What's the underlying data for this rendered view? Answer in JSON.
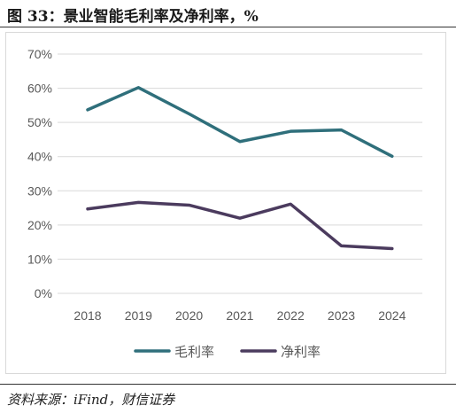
{
  "header": {
    "title": "图 33：景业智能毛利率及净利率，%"
  },
  "footer": {
    "source": "资料来源：iFind，财信证券"
  },
  "colors": {
    "gross_margin": "#2f6f7b",
    "net_margin": "#4b3b5e",
    "grid": "#d9d9d9",
    "text": "#595959"
  },
  "chart_data": {
    "type": "line",
    "title": "",
    "xlabel": "",
    "ylabel": "",
    "categories": [
      "2018",
      "2019",
      "2020",
      "2021",
      "2022",
      "2023",
      "2024"
    ],
    "ylim": [
      0,
      70
    ],
    "yticks": [
      "0%",
      "10%",
      "20%",
      "30%",
      "40%",
      "50%",
      "60%",
      "70%"
    ],
    "grid": true,
    "legend_position": "bottom",
    "series": [
      {
        "name": "毛利率",
        "color": "#2f6f7b",
        "values": [
          53.7,
          60.2,
          52.5,
          44.4,
          47.4,
          47.8,
          40.1
        ]
      },
      {
        "name": "净利率",
        "color": "#4b3b5e",
        "values": [
          24.7,
          26.6,
          25.8,
          22.0,
          26.1,
          13.9,
          13.1
        ]
      }
    ]
  }
}
